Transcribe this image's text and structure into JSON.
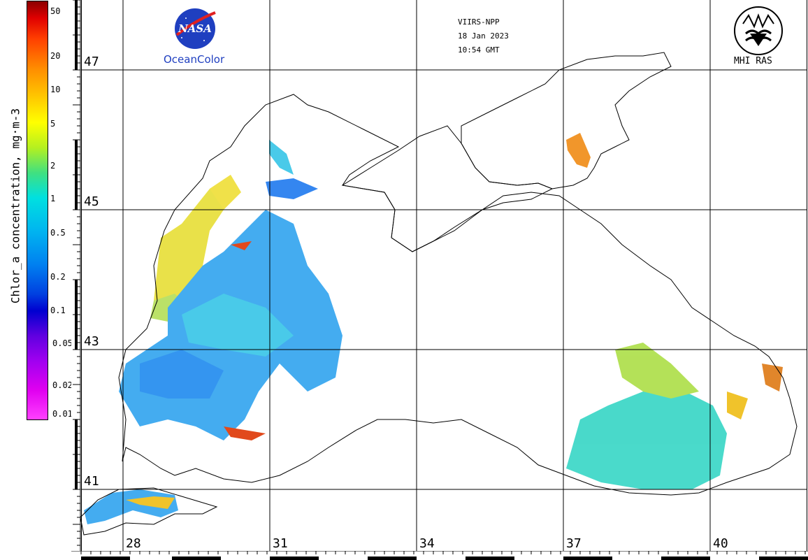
{
  "info": {
    "satellite": "VIIRS-NPP",
    "date": "18 Jan 2023",
    "time": "10:54 GMT"
  },
  "logos": {
    "nasa_text": "NASA",
    "oceancolor": "OceanColor",
    "mhi": "MHI RAS"
  },
  "colorbar": {
    "title": "Chlor_a concentration, mg·m-3",
    "labels": [
      "50",
      "20",
      "10",
      "5",
      "2",
      "1",
      "0.5",
      "0.2",
      "0.1",
      "0.05",
      "0.02",
      "0.01"
    ]
  },
  "latitudes": [
    "47",
    "45",
    "43",
    "41"
  ],
  "longitudes": [
    "28",
    "31",
    "34",
    "37",
    "40"
  ],
  "colors": {
    "land_outline": "#000000",
    "grid": "#000000",
    "nasa_blue": "#1f3fc0",
    "nasa_red": "#e02020"
  }
}
